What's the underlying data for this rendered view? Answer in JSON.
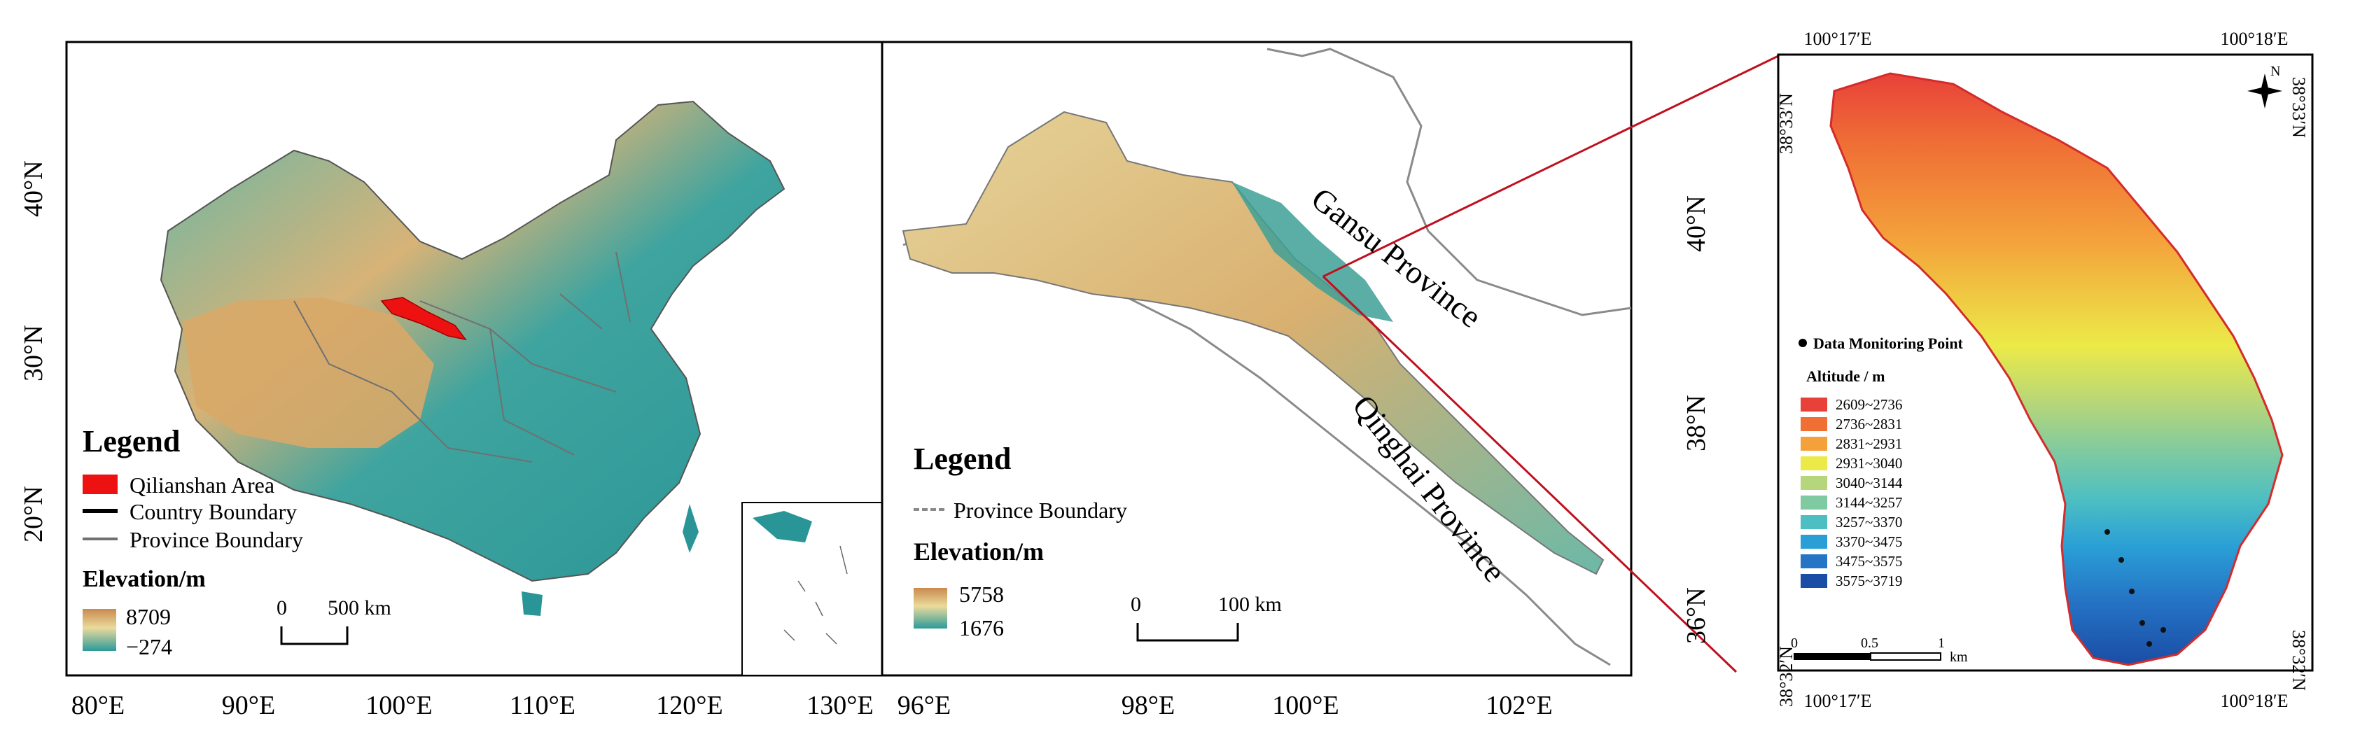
{
  "colors": {
    "qilian_red": "#ee1111",
    "elev_high": "#d6a15c",
    "elev_mid": "#e8d89a",
    "elev_low": "#2c9a9a",
    "province_line": "#808080",
    "country_line": "#000000"
  },
  "panel_a": {
    "legend_title": "Legend",
    "legend_items": [
      {
        "label": "Qilianshan Area",
        "symbol": "red-box"
      },
      {
        "label": "Country Boundary",
        "symbol": "black-line"
      },
      {
        "label": "Province Boundary",
        "symbol": "gray-line"
      }
    ],
    "elevation_title": "Elevation/m",
    "elevation_max": "8709",
    "elevation_min": "−274",
    "scale_start": "0",
    "scale_end": "500 km",
    "lat_ticks": [
      "40°N",
      "30°N",
      "20°N"
    ],
    "lon_ticks": [
      "80°E",
      "90°E",
      "100°E",
      "110°E",
      "120°E",
      "130°E"
    ]
  },
  "panel_b": {
    "legend_title": "Legend",
    "legend_items": [
      {
        "label": "Province Boundary",
        "symbol": "gray-dashed-line"
      }
    ],
    "elevation_title": "Elevation/m",
    "elevation_max": "5758",
    "elevation_min": "1676",
    "scale_start": "0",
    "scale_end": "100 km",
    "label_gansu": "Gansu   Province",
    "label_qinghai": "Qinghai   Province",
    "lat_ticks": [
      "40°N",
      "38°N",
      "36°N"
    ],
    "lon_ticks": [
      "96°E",
      "98°E",
      "100°E",
      "102°E"
    ]
  },
  "panel_c": {
    "north_label": "N",
    "point_legend": "Data Monitoring Point",
    "altitude_title": "Altitude / m",
    "altitude_classes": [
      {
        "label": "2609~2736",
        "color": "#e8413a"
      },
      {
        "label": "2736~2831",
        "color": "#ef6f35"
      },
      {
        "label": "2831~2931",
        "color": "#f4a13b"
      },
      {
        "label": "2931~3040",
        "color": "#ecea48"
      },
      {
        "label": "3040~3144",
        "color": "#b5d67a"
      },
      {
        "label": "3144~3257",
        "color": "#7fcaa0"
      },
      {
        "label": "3257~3370",
        "color": "#4dbfc2"
      },
      {
        "label": "3370~3475",
        "color": "#2a9fd6"
      },
      {
        "label": "3475~3575",
        "color": "#2574c5"
      },
      {
        "label": "3575~3719",
        "color": "#1a4da6"
      }
    ],
    "scale_labels": [
      "0",
      "0.5",
      "1"
    ],
    "scale_unit": "km",
    "top_lon": [
      "100°17′E",
      "100°18′E"
    ],
    "bottom_lon": [
      "100°17′E",
      "100°18′E"
    ],
    "left_lat": [
      "38°33′N",
      "38°32′N"
    ],
    "right_lat": [
      "38°33′N",
      "38°32′N"
    ]
  }
}
